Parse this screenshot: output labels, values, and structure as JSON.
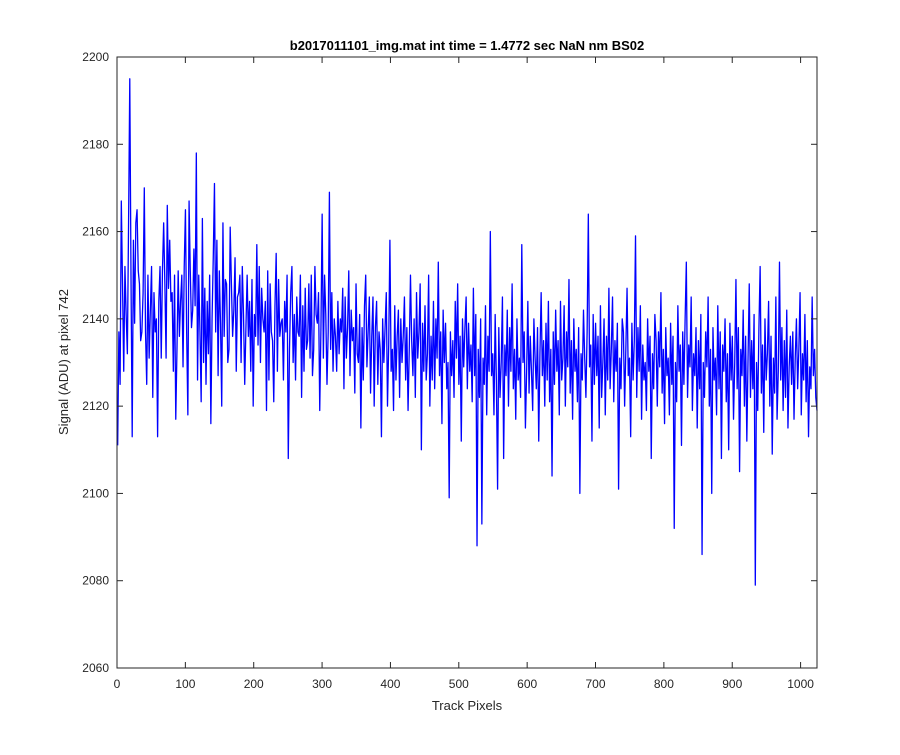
{
  "chart_data": {
    "type": "line",
    "title": "b2017011101_img.mat int time = 1.4772 sec  NaN nm BS02",
    "xlabel": "Track Pixels",
    "ylabel": "Signal (ADU) at pixel 742",
    "xlim": [
      0,
      1024
    ],
    "ylim": [
      2060,
      2200
    ],
    "xticks": [
      0,
      100,
      200,
      300,
      400,
      500,
      600,
      700,
      800,
      900,
      1000
    ],
    "yticks": [
      2060,
      2080,
      2100,
      2120,
      2140,
      2160,
      2180,
      2200
    ],
    "grid": false,
    "legend": "none",
    "series_color": "#0000ff",
    "axis_color": "#262626",
    "series": [
      {
        "points_note_x_step": 1,
        "x_start": 1,
        "values": [
          2111,
          2137,
          2125,
          2167,
          2148,
          2128,
          2152,
          2141,
          2132,
          2162,
          2195,
          2150,
          2113,
          2158,
          2139,
          2162,
          2165,
          2151,
          2148,
          2135,
          2137,
          2146,
          2170,
          2137,
          2125,
          2150,
          2131,
          2142,
          2152,
          2122,
          2146,
          2137,
          2140,
          2113,
          2144,
          2152,
          2131,
          2151,
          2162,
          2148,
          2131,
          2166,
          2147,
          2158,
          2144,
          2146,
          2128,
          2150,
          2117,
          2133,
          2151,
          2136,
          2144,
          2150,
          2129,
          2152,
          2165,
          2137,
          2118,
          2167,
          2151,
          2138,
          2142,
          2156,
          2143,
          2178,
          2126,
          2150,
          2137,
          2121,
          2163,
          2130,
          2147,
          2125,
          2144,
          2132,
          2150,
          2116,
          2140,
          2154,
          2171,
          2137,
          2158,
          2127,
          2151,
          2139,
          2120,
          2162,
          2136,
          2149,
          2148,
          2130,
          2133,
          2161,
          2148,
          2136,
          2142,
          2154,
          2128,
          2145,
          2146,
          2150,
          2130,
          2152,
          2141,
          2125,
          2138,
          2150,
          2136,
          2144,
          2128,
          2149,
          2120,
          2141,
          2136,
          2157,
          2134,
          2152,
          2130,
          2147,
          2140,
          2137,
          2144,
          2119,
          2151,
          2126,
          2148,
          2137,
          2135,
          2121,
          2143,
          2155,
          2128,
          2149,
          2136,
          2139,
          2140,
          2126,
          2144,
          2137,
          2150,
          2108,
          2133,
          2146,
          2152,
          2130,
          2141,
          2126,
          2145,
          2137,
          2136,
          2150,
          2122,
          2143,
          2128,
          2147,
          2133,
          2135,
          2148,
          2131,
          2150,
          2127,
          2133,
          2152,
          2141,
          2139,
          2146,
          2119,
          2138,
          2164,
          2131,
          2150,
          2141,
          2125,
          2137,
          2169,
          2133,
          2146,
          2128,
          2140,
          2136,
          2128,
          2144,
          2132,
          2140,
          2137,
          2147,
          2124,
          2145,
          2131,
          2138,
          2151,
          2127,
          2142,
          2135,
          2138,
          2123,
          2148,
          2132,
          2130,
          2141,
          2115,
          2138,
          2126,
          2143,
          2150,
          2129,
          2137,
          2145,
          2123,
          2136,
          2145,
          2120,
          2138,
          2144,
          2125,
          2137,
          2133,
          2113,
          2140,
          2130,
          2138,
          2146,
          2120,
          2134,
          2158,
          2128,
          2133,
          2119,
          2143,
          2126,
          2136,
          2142,
          2122,
          2140,
          2130,
          2136,
          2145,
          2126,
          2138,
          2119,
          2133,
          2150,
          2135,
          2127,
          2140,
          2122,
          2146,
          2131,
          2137,
          2148,
          2110,
          2139,
          2128,
          2143,
          2126,
          2132,
          2150,
          2120,
          2136,
          2126,
          2144,
          2124,
          2140,
          2131,
          2153,
          2127,
          2137,
          2116,
          2142,
          2130,
          2139,
          2124,
          2130,
          2099,
          2137,
          2127,
          2135,
          2122,
          2144,
          2131,
          2148,
          2125,
          2136,
          2112,
          2140,
          2129,
          2138,
          2145,
          2124,
          2139,
          2128,
          2134,
          2121,
          2147,
          2127,
          2141,
          2088,
          2133,
          2122,
          2140,
          2093,
          2131,
          2125,
          2143,
          2118,
          2136,
          2128,
          2160,
          2127,
          2132,
          2118,
          2141,
          2126,
          2101,
          2138,
          2122,
          2130,
          2145,
          2108,
          2134,
          2127,
          2142,
          2120,
          2138,
          2128,
          2148,
          2124,
          2133,
          2117,
          2140,
          2126,
          2131,
          2122,
          2157,
          2130,
          2137,
          2115,
          2128,
          2144,
          2123,
          2136,
          2128,
          2119,
          2140,
          2131,
          2124,
          2138,
          2112,
          2132,
          2146,
          2127,
          2135,
          2120,
          2139,
          2126,
          2144,
          2121,
          2133,
          2104,
          2137,
          2125,
          2142,
          2128,
          2135,
          2118,
          2144,
          2126,
          2131,
          2143,
          2120,
          2137,
          2129,
          2149,
          2123,
          2135,
          2117,
          2140,
          2128,
          2133,
          2121,
          2138,
          2100,
          2132,
          2126,
          2142,
          2131,
          2122,
          2137,
          2164,
          2129,
          2134,
          2112,
          2141,
          2125,
          2139,
          2127,
          2136,
          2115,
          2143,
          2122,
          2130,
          2140,
          2118,
          2136,
          2126,
          2147,
          2124,
          2133,
          2145,
          2121,
          2135,
          2128,
          2139,
          2101,
          2131,
          2124,
          2140,
          2137,
          2120,
          2133,
          2147,
          2127,
          2131,
          2113,
          2139,
          2126,
          2135,
          2159,
          2122,
          2138,
          2128,
          2143,
          2117,
          2134,
          2126,
          2130,
          2119,
          2140,
          2128,
          2136,
          2108,
          2132,
          2124,
          2141,
          2135,
          2120,
          2137,
          2129,
          2146,
          2123,
          2133,
          2116,
          2138,
          2127,
          2131,
          2118,
          2139,
          2125,
          2136,
          2092,
          2130,
          2121,
          2143,
          2128,
          2134,
          2111,
          2137,
          2125,
          2140,
          2153,
          2122,
          2134,
          2129,
          2145,
          2119,
          2132,
          2127,
          2138,
          2115,
          2135,
          2124,
          2141,
          2086,
          2130,
          2122,
          2137,
          2129,
          2145,
          2120,
          2133,
          2100,
          2138,
          2126,
          2131,
          2118,
          2143,
          2124,
          2137,
          2108,
          2134,
          2128,
          2140,
          2121,
          2132,
          2110,
          2139,
          2126,
          2136,
          2117,
          2130,
          2149,
          2124,
          2138,
          2105,
          2133,
          2127,
          2142,
          2120,
          2136,
          2112,
          2131,
          2148,
          2122,
          2135,
          2124,
          2141,
          2079,
          2130,
          2119,
          2138,
          2152,
          2123,
          2134,
          2114,
          2140,
          2126,
          2132,
          2144,
          2120,
          2136,
          2109,
          2131,
          2123,
          2145,
          2117,
          2128,
          2153,
          2126,
          2138,
          2119,
          2135,
          2122,
          2142,
          2115,
          2129,
          2136,
          2125,
          2137,
          2117,
          2131,
          2140,
          2124,
          2133,
          2146,
          2118,
          2132,
          2126,
          2141,
          2121,
          2135,
          2113,
          2129,
          2124,
          2145,
          2127,
          2133,
          2122,
          2119
        ]
      }
    ]
  }
}
